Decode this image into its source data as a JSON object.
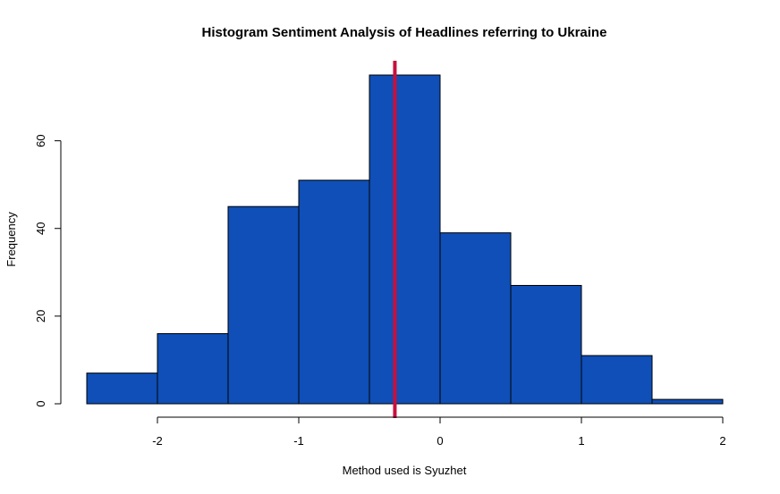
{
  "chart_data": {
    "type": "bar",
    "title": "Histogram Sentiment Analysis of Headlines referring to Ukraine",
    "xlabel": "Method used is Syuzhet",
    "ylabel": "Frequency",
    "bins": [
      {
        "from": -2.5,
        "to": -2.0,
        "count": 7
      },
      {
        "from": -2.0,
        "to": -1.5,
        "count": 16
      },
      {
        "from": -1.5,
        "to": -1.0,
        "count": 45
      },
      {
        "from": -1.0,
        "to": -0.5,
        "count": 51
      },
      {
        "from": -0.5,
        "to": 0.0,
        "count": 75
      },
      {
        "from": 0.0,
        "to": 0.5,
        "count": 39
      },
      {
        "from": 0.5,
        "to": 1.0,
        "count": 27
      },
      {
        "from": 1.0,
        "to": 1.5,
        "count": 11
      },
      {
        "from": 1.5,
        "to": 2.0,
        "count": 1
      }
    ],
    "xticks": [
      -2,
      -1,
      0,
      1,
      2
    ],
    "xtick_labels": [
      "-2",
      "-1",
      "0",
      "1",
      "2"
    ],
    "yticks": [
      0,
      20,
      40,
      60
    ],
    "ytick_labels": [
      "0",
      "20",
      "40",
      "60"
    ],
    "xlim": [
      -2.5,
      2.0
    ],
    "ylim": [
      0,
      75
    ],
    "vline": {
      "x": -0.32,
      "color": "#c8103e"
    },
    "bar_color": "#0f4fb7",
    "grid": false,
    "legend": "none"
  }
}
